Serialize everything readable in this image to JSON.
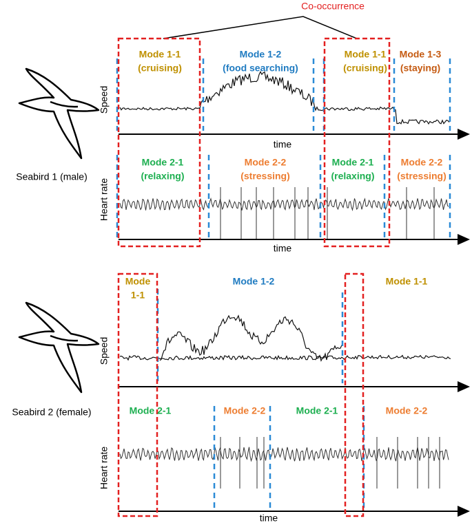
{
  "annotation": "Co-occurrence",
  "panels": [
    {
      "bird": "Seabird 1 (male)",
      "speed_label": "Speed",
      "speed_time_label": "time",
      "heart_label": "Heart rate",
      "heart_time_label": "time",
      "speed_modes": [
        {
          "lines": [
            "Mode 1-1",
            "(cruising)"
          ]
        },
        {
          "lines": [
            "Mode 1-2",
            "(food searching)"
          ]
        },
        {
          "lines": [
            "Mode 1-1",
            "(cruising)"
          ]
        },
        {
          "lines": [
            "Mode 1-3",
            "(staying)"
          ]
        }
      ],
      "heart_modes": [
        {
          "lines": [
            "Mode 2-1",
            "(relaxing)"
          ]
        },
        {
          "lines": [
            "Mode 2-2",
            "(stressing)"
          ]
        },
        {
          "lines": [
            "Mode 2-1",
            "(relaxing)"
          ]
        },
        {
          "lines": [
            "Mode 2-2",
            "(stressing)"
          ]
        }
      ]
    },
    {
      "bird": "Seabird 2 (female)",
      "speed_label": "Speed",
      "heart_label": "Heart rate",
      "heart_time_label": "time",
      "speed_modes": [
        {
          "lines": [
            "Mode",
            "1-1"
          ]
        },
        {
          "lines": [
            "Mode 1-2"
          ]
        },
        {
          "lines": [
            "Mode 1-1"
          ]
        }
      ],
      "heart_modes": [
        {
          "lines": [
            "Mode 2-1"
          ]
        },
        {
          "lines": [
            "Mode 2-2"
          ]
        },
        {
          "lines": [
            "Mode 2-1"
          ]
        },
        {
          "lines": [
            "Mode 2-2"
          ]
        }
      ]
    }
  ]
}
